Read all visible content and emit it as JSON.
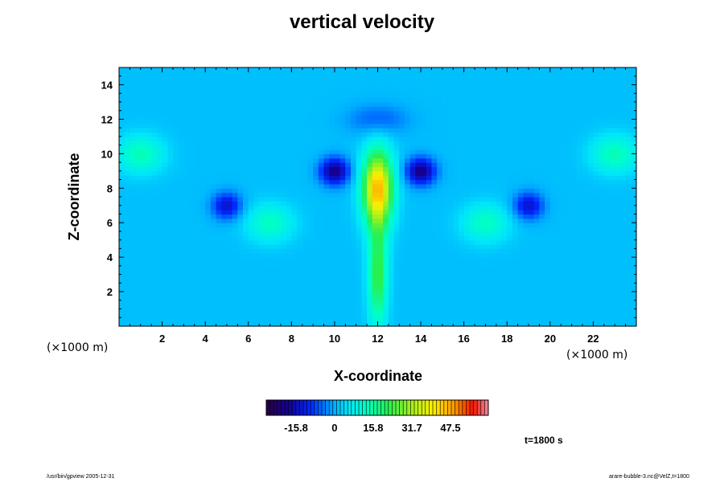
{
  "chart_data": {
    "type": "heatmap",
    "title": "vertical velocity",
    "xlabel": "X-coordinate",
    "ylabel": "Z-coordinate",
    "x_unit": "(×1000 m)",
    "y_unit": "(×1000 m)",
    "xlim": [
      0,
      24
    ],
    "ylim": [
      0,
      15
    ],
    "x_ticks": [
      "2",
      "4",
      "6",
      "8",
      "10",
      "12",
      "14",
      "16",
      "18",
      "20",
      "22"
    ],
    "x_tick_values": [
      2,
      4,
      6,
      8,
      10,
      12,
      14,
      16,
      18,
      20,
      22
    ],
    "y_ticks": [
      "2",
      "4",
      "6",
      "8",
      "10",
      "12",
      "14"
    ],
    "y_tick_values": [
      2,
      4,
      6,
      8,
      10,
      12,
      14
    ],
    "colorbar": {
      "labels": [
        "-15.8",
        "0",
        "15.8",
        "31.7",
        "47.5"
      ],
      "label_values": [
        -15.8,
        0,
        15.8,
        31.7,
        47.5
      ],
      "range": [
        -28,
        63
      ]
    },
    "features": [
      {
        "kind": "updraft core",
        "x": 12,
        "z": 8,
        "value": 44
      },
      {
        "kind": "updraft column",
        "x": 12,
        "z": 3,
        "value": 22
      },
      {
        "kind": "downdraft",
        "x": 12,
        "z": 12,
        "value": -8
      },
      {
        "kind": "downdraft",
        "x": 5,
        "z": 7,
        "value": -16
      },
      {
        "kind": "downdraft",
        "x": 19,
        "z": 7,
        "value": -16
      },
      {
        "kind": "downdraft",
        "x": 10,
        "z": 9,
        "value": -22
      },
      {
        "kind": "downdraft",
        "x": 14,
        "z": 9,
        "value": -22
      },
      {
        "kind": "updraft lobe",
        "x": 1,
        "z": 10,
        "value": 13
      },
      {
        "kind": "updraft lobe",
        "x": 23,
        "z": 10,
        "value": 13
      },
      {
        "kind": "updraft lobe",
        "x": 7,
        "z": 6,
        "value": 12
      },
      {
        "kind": "updraft lobe",
        "x": 17,
        "z": 6,
        "value": 12
      }
    ]
  },
  "annotations": {
    "time": "t=1800 s",
    "footer_left": "/usr/bin/gpview 2005-12-31",
    "footer_right": "arare-bubble-3.nc@VelZ,t=1800"
  },
  "colors": {
    "background": "#00d8f8"
  }
}
